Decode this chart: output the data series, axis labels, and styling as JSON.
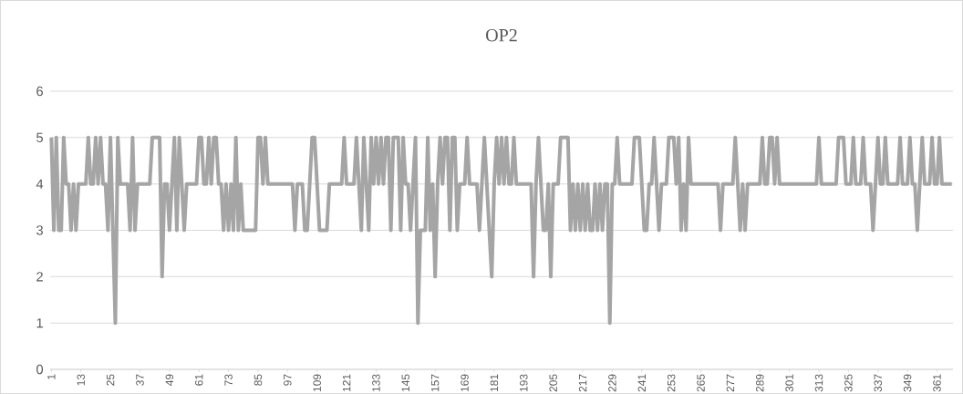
{
  "chart_data": {
    "type": "line",
    "title": "OP2",
    "categories": [
      "1",
      null,
      null,
      null,
      null,
      null,
      null,
      null,
      null,
      null,
      null,
      null,
      "13",
      null,
      null,
      null,
      null,
      null,
      null,
      null,
      null,
      null,
      null,
      null,
      "25",
      null,
      null,
      null,
      null,
      null,
      null,
      null,
      null,
      null,
      null,
      null,
      "37",
      null,
      null,
      null,
      null,
      null,
      null,
      null,
      null,
      null,
      null,
      null,
      "49",
      null,
      null,
      null,
      null,
      null,
      null,
      null,
      null,
      null,
      null,
      null,
      "61",
      null,
      null,
      null,
      null,
      null,
      null,
      null,
      null,
      null,
      null,
      null,
      "73",
      null,
      null,
      null,
      null,
      null,
      null,
      null,
      null,
      null,
      null,
      null,
      "85",
      null,
      null,
      null,
      null,
      null,
      null,
      null,
      null,
      null,
      null,
      null,
      "97",
      null,
      null,
      null,
      null,
      null,
      null,
      null,
      null,
      null,
      null,
      null,
      "109",
      null,
      null,
      null,
      null,
      null,
      null,
      null,
      null,
      null,
      null,
      null,
      "121",
      null,
      null,
      null,
      null,
      null,
      null,
      null,
      null,
      null,
      null,
      null,
      "133",
      null,
      null,
      null,
      null,
      null,
      null,
      null,
      null,
      null,
      null,
      null,
      "145",
      null,
      null,
      null,
      null,
      null,
      null,
      null,
      null,
      null,
      null,
      null,
      "157",
      null,
      null,
      null,
      null,
      null,
      null,
      null,
      null,
      null,
      null,
      null,
      "169",
      null,
      null,
      null,
      null,
      null,
      null,
      null,
      null,
      null,
      null,
      null,
      "181",
      null,
      null,
      null,
      null,
      null,
      null,
      null,
      null,
      null,
      null,
      null,
      "193",
      null,
      null,
      null,
      null,
      null,
      null,
      null,
      null,
      null,
      null,
      null,
      "205",
      null,
      null,
      null,
      null,
      null,
      null,
      null,
      null,
      null,
      null,
      null,
      "217",
      null,
      null,
      null,
      null,
      null,
      null,
      null,
      null,
      null,
      null,
      null,
      "229",
      null,
      null,
      null,
      null,
      null,
      null,
      null,
      null,
      null,
      null,
      null,
      "241",
      null,
      null,
      null,
      null,
      null,
      null,
      null,
      null,
      null,
      null,
      null,
      "253",
      null,
      null,
      null,
      null,
      null,
      null,
      null,
      null,
      null,
      null,
      null,
      "265",
      null,
      null,
      null,
      null,
      null,
      null,
      null,
      null,
      null,
      null,
      null,
      "277",
      null,
      null,
      null,
      null,
      null,
      null,
      null,
      null,
      null,
      null,
      null,
      "289",
      null,
      null,
      null,
      null,
      null,
      null,
      null,
      null,
      null,
      null,
      null,
      "301",
      null,
      null,
      null,
      null,
      null,
      null,
      null,
      null,
      null,
      null,
      null,
      "313",
      null,
      null,
      null,
      null,
      null,
      null,
      null,
      null,
      null,
      null,
      null,
      "325",
      null,
      null,
      null,
      null,
      null,
      null,
      null,
      null,
      null,
      null,
      null,
      "337",
      null,
      null,
      null,
      null,
      null,
      null,
      null,
      null,
      null,
      null,
      null,
      "349",
      null,
      null,
      null,
      null,
      null,
      null,
      null,
      null,
      null,
      null,
      null,
      "361",
      null,
      null,
      null,
      null,
      null,
      null
    ],
    "values": [
      5,
      3,
      5,
      3,
      3,
      5,
      4,
      4,
      3,
      4,
      3,
      4,
      4,
      4,
      4,
      5,
      4,
      4,
      5,
      4,
      5,
      4,
      4,
      3,
      5,
      3,
      1,
      5,
      4,
      4,
      4,
      4,
      3,
      5,
      3,
      4,
      4,
      4,
      4,
      4,
      4,
      5,
      5,
      5,
      5,
      2,
      4,
      4,
      3,
      4,
      5,
      3,
      5,
      4,
      3,
      4,
      4,
      4,
      4,
      4,
      5,
      5,
      4,
      4,
      5,
      4,
      5,
      5,
      4,
      4,
      3,
      4,
      3,
      4,
      3,
      5,
      3,
      4,
      3,
      3,
      3,
      3,
      3,
      3,
      5,
      5,
      4,
      5,
      4,
      4,
      4,
      4,
      4,
      4,
      4,
      4,
      4,
      4,
      4,
      3,
      4,
      4,
      4,
      3,
      3,
      4,
      5,
      5,
      4,
      3,
      3,
      3,
      3,
      4,
      4,
      4,
      4,
      4,
      4,
      5,
      4,
      4,
      4,
      4,
      5,
      4,
      3,
      5,
      4,
      3,
      5,
      4,
      5,
      4,
      5,
      4,
      5,
      5,
      3,
      5,
      5,
      5,
      3,
      5,
      4,
      4,
      3,
      4,
      5,
      1,
      3,
      3,
      3,
      5,
      3,
      4,
      2,
      4,
      5,
      4,
      5,
      5,
      3,
      5,
      5,
      3,
      4,
      4,
      4,
      5,
      4,
      4,
      4,
      4,
      3,
      4,
      5,
      4,
      3,
      2,
      4,
      5,
      4,
      5,
      4,
      5,
      4,
      4,
      5,
      4,
      4,
      4,
      4,
      4,
      4,
      4,
      2,
      4,
      5,
      4,
      3,
      3,
      4,
      2,
      4,
      4,
      4,
      5,
      5,
      5,
      5,
      3,
      4,
      3,
      4,
      3,
      4,
      3,
      4,
      3,
      3,
      4,
      3,
      4,
      3,
      4,
      4,
      1,
      4,
      4,
      5,
      4,
      4,
      4,
      4,
      4,
      4,
      5,
      5,
      5,
      4,
      3,
      3,
      4,
      4,
      5,
      4,
      3,
      4,
      4,
      4,
      5,
      5,
      5,
      4,
      5,
      3,
      4,
      3,
      5,
      4,
      4,
      4,
      4,
      4,
      4,
      4,
      4,
      4,
      4,
      4,
      4,
      3,
      4,
      4,
      4,
      4,
      4,
      5,
      4,
      3,
      4,
      3,
      4,
      4,
      4,
      4,
      4,
      4,
      5,
      4,
      4,
      5,
      5,
      4,
      5,
      4,
      4,
      4,
      4,
      4,
      4,
      4,
      4,
      4,
      4,
      4,
      4,
      4,
      4,
      4,
      4,
      5,
      4,
      4,
      4,
      4,
      4,
      4,
      4,
      5,
      5,
      5,
      4,
      4,
      4,
      5,
      4,
      4,
      4,
      5,
      4,
      4,
      4,
      3,
      4,
      5,
      4,
      4,
      5,
      4,
      4,
      4,
      4,
      4,
      5,
      4,
      4,
      4,
      5,
      4,
      4,
      3,
      4,
      5,
      4,
      4,
      4,
      5,
      4,
      4,
      5,
      4,
      4,
      4,
      4,
      4
    ],
    "color": "#a5a5a5",
    "ylim": [
      0,
      6
    ],
    "yticks": [
      0,
      1,
      2,
      3,
      4,
      5,
      6
    ],
    "grid": "y"
  }
}
